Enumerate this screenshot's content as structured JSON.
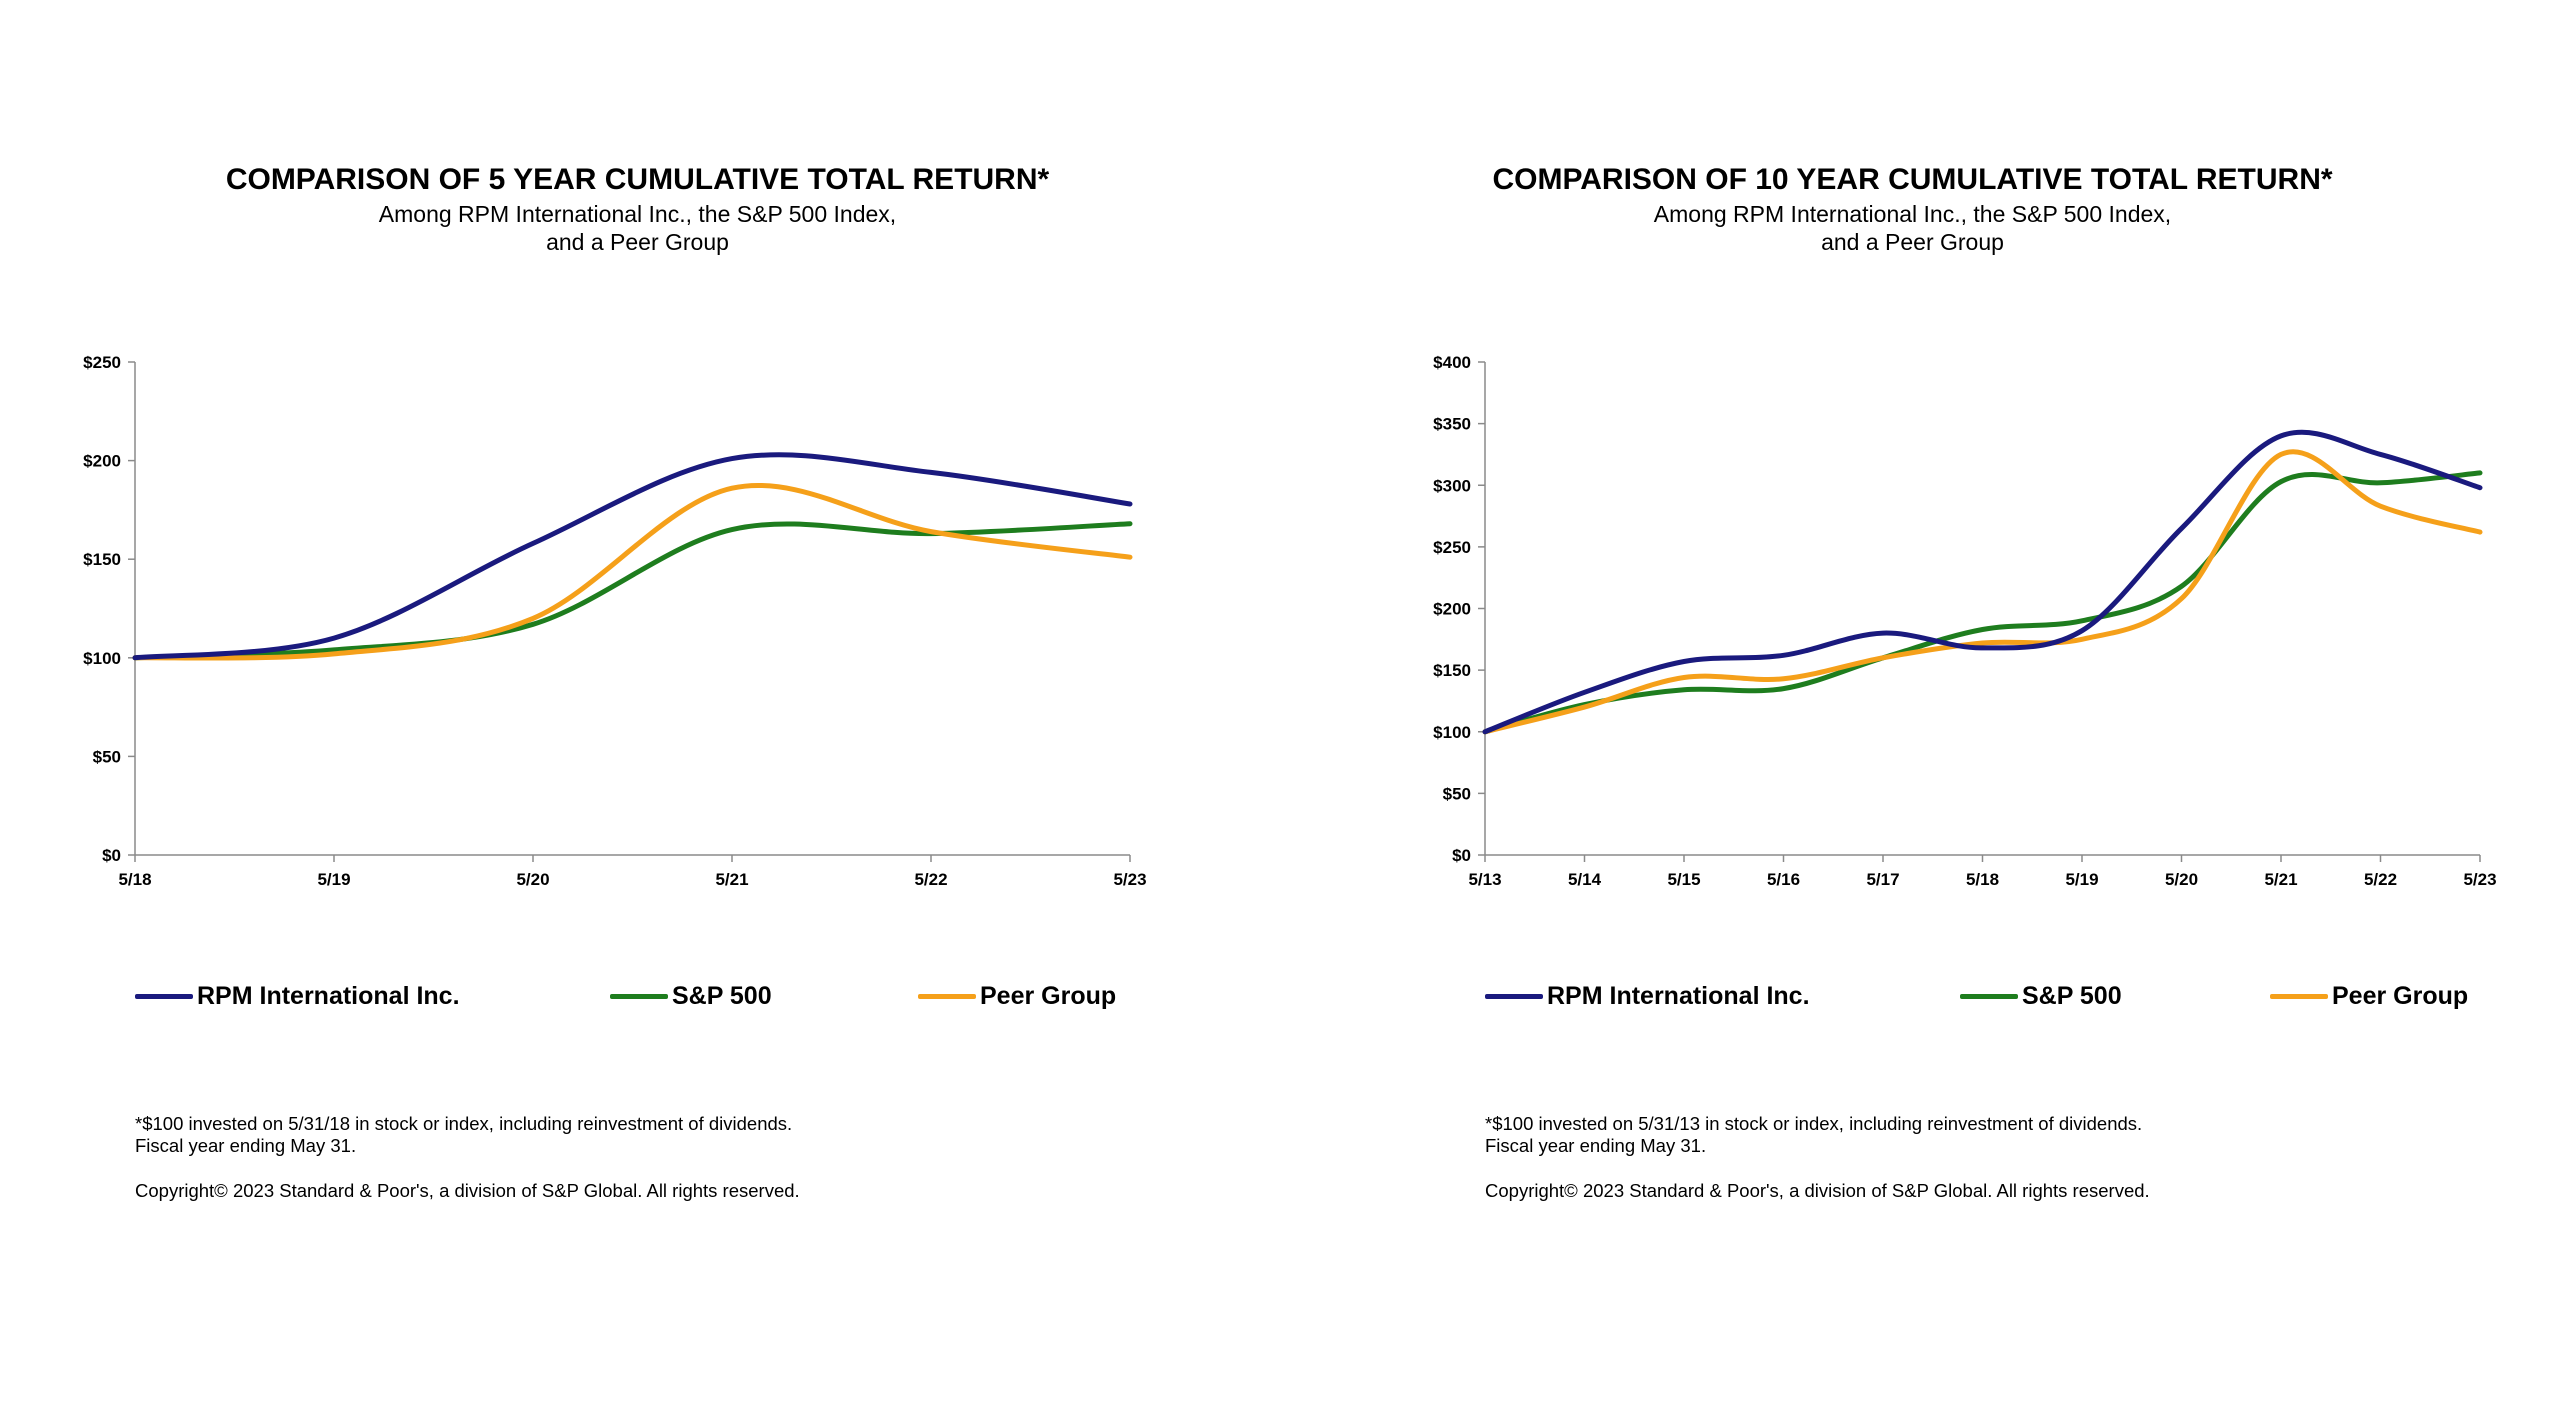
{
  "colors": {
    "rpm": "#1a1a7e",
    "sp500": "#1e7d1e",
    "peer": "#f5a01a"
  },
  "charts": [
    {
      "title": "COMPARISON OF 5 YEAR CUMULATIVE TOTAL RETURN*",
      "subtitle_lines": [
        "Among RPM International Inc., the S&P 500 Index,",
        "and a Peer Group"
      ],
      "legend": [
        "RPM International Inc.",
        "S&P 500",
        "Peer Group"
      ],
      "footnote_lines": [
        "*$100 invested on 5/31/18 in stock or index, including reinvestment of dividends.",
        "Fiscal year ending May 31."
      ],
      "copyright": "Copyright© 2023 Standard & Poor's, a division of S&P Global. All rights reserved."
    },
    {
      "title": "COMPARISON OF 10 YEAR CUMULATIVE TOTAL RETURN*",
      "subtitle_lines": [
        "Among RPM International Inc., the S&P 500 Index,",
        "and a Peer Group"
      ],
      "legend": [
        "RPM International Inc.",
        "S&P 500",
        "Peer Group"
      ],
      "footnote_lines": [
        "*$100 invested on 5/31/13 in stock or index, including reinvestment of dividends.",
        "Fiscal year ending May 31."
      ],
      "copyright": "Copyright© 2023 Standard & Poor's, a division of S&P Global. All rights reserved."
    }
  ],
  "chart_data": [
    {
      "type": "line",
      "title": "COMPARISON OF 5 YEAR CUMULATIVE TOTAL RETURN*",
      "categories": [
        "5/18",
        "5/19",
        "5/20",
        "5/21",
        "5/22",
        "5/23"
      ],
      "y_ticks": [
        "$0",
        "$50",
        "$100",
        "$150",
        "$200",
        "$250"
      ],
      "ylim": [
        0,
        250
      ],
      "grid": false,
      "legend_position": "bottom",
      "series": [
        {
          "name": "RPM International Inc.",
          "values": [
            100,
            110,
            158,
            201,
            194,
            178
          ]
        },
        {
          "name": "S&P 500",
          "values": [
            100,
            104,
            117,
            165,
            163,
            168
          ]
        },
        {
          "name": "Peer Group",
          "values": [
            100,
            102,
            120,
            186,
            164,
            151
          ]
        }
      ]
    },
    {
      "type": "line",
      "title": "COMPARISON OF 10 YEAR CUMULATIVE TOTAL RETURN*",
      "categories": [
        "5/13",
        "5/14",
        "5/15",
        "5/16",
        "5/17",
        "5/18",
        "5/19",
        "5/20",
        "5/21",
        "5/22",
        "5/23"
      ],
      "y_ticks": [
        "$0",
        "$50",
        "$100",
        "$150",
        "$200",
        "$250",
        "$300",
        "$350",
        "$400"
      ],
      "ylim": [
        0,
        400
      ],
      "grid": false,
      "legend_position": "bottom",
      "series": [
        {
          "name": "RPM International Inc.",
          "values": [
            100,
            132,
            157,
            162,
            180,
            168,
            182,
            265,
            340,
            325,
            298
          ]
        },
        {
          "name": "S&P 500",
          "values": [
            100,
            122,
            134,
            135,
            160,
            183,
            190,
            218,
            303,
            302,
            310
          ]
        },
        {
          "name": "Peer Group",
          "values": [
            100,
            120,
            144,
            143,
            160,
            172,
            175,
            208,
            325,
            283,
            262
          ]
        }
      ]
    }
  ]
}
